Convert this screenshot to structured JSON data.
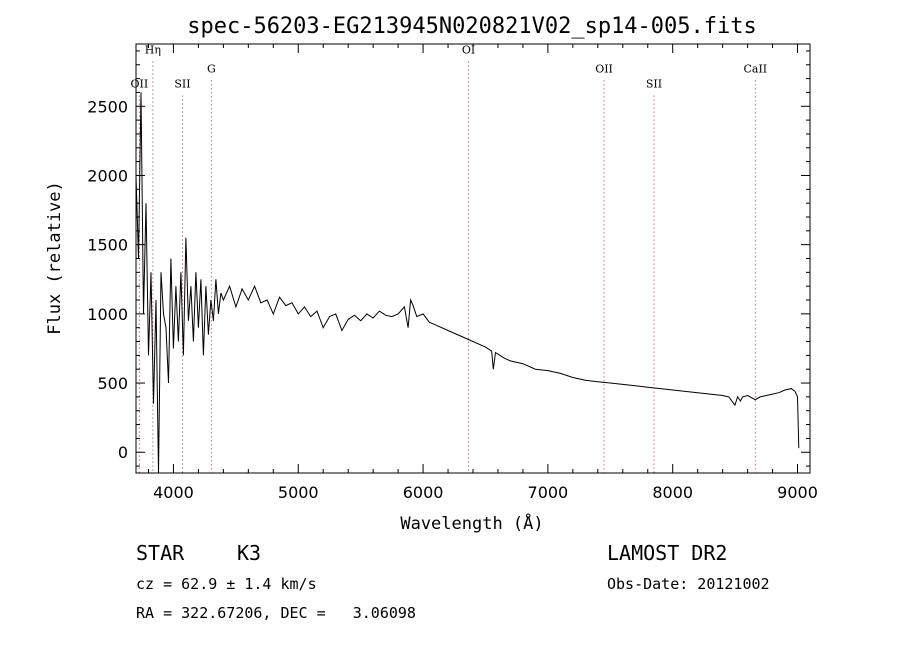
{
  "chart_data": {
    "type": "line",
    "title": "spec-56203-EG213945N020821V02_sp14-005.fits",
    "xlabel": "Wavelength (Å)",
    "ylabel": "Flux (relative)",
    "xlim": [
      3700,
      9100
    ],
    "ylim": [
      -150,
      2950
    ],
    "xticks": [
      4000,
      5000,
      6000,
      7000,
      8000,
      9000
    ],
    "yticks": [
      0,
      500,
      1000,
      1500,
      2000,
      2500
    ],
    "grid": false,
    "series": [
      {
        "x": [
          3700,
          3720,
          3740,
          3760,
          3780,
          3800,
          3820,
          3840,
          3860,
          3880,
          3900,
          3920,
          3940,
          3960,
          3980,
          4000,
          4020,
          4040,
          4060,
          4080,
          4100,
          4120,
          4140,
          4160,
          4180,
          4200,
          4220,
          4240,
          4260,
          4280,
          4300,
          4320,
          4340,
          4360,
          4380,
          4400,
          4450,
          4500,
          4550,
          4600,
          4650,
          4700,
          4750,
          4800,
          4850,
          4900,
          4950,
          5000,
          5050,
          5100,
          5150,
          5200,
          5250,
          5300,
          5350,
          5400,
          5450,
          5500,
          5550,
          5600,
          5650,
          5700,
          5750,
          5800,
          5850,
          5880,
          5900,
          5920,
          5950,
          6000,
          6050,
          6100,
          6200,
          6300,
          6400,
          6500,
          6550,
          6563,
          6580,
          6650,
          6700,
          6800,
          6900,
          7000,
          7100,
          7200,
          7300,
          7400,
          7500,
          7600,
          7700,
          7800,
          7900,
          8000,
          8100,
          8200,
          8300,
          8400,
          8450,
          8498,
          8520,
          8542,
          8560,
          8600,
          8662,
          8700,
          8750,
          8800,
          8850,
          8900,
          8950,
          8980,
          9000,
          9010
        ],
        "values": [
          2000,
          1400,
          2600,
          1000,
          1800,
          700,
          1300,
          350,
          1100,
          -150,
          1300,
          1000,
          900,
          500,
          1400,
          750,
          1200,
          800,
          1300,
          700,
          1550,
          950,
          1200,
          800,
          1300,
          900,
          1250,
          700,
          1200,
          850,
          1100,
          950,
          1250,
          1000,
          1150,
          1100,
          1200,
          1050,
          1180,
          1100,
          1200,
          1080,
          1100,
          1000,
          1120,
          1060,
          1080,
          1000,
          1050,
          980,
          1020,
          900,
          980,
          1000,
          880,
          960,
          990,
          950,
          1000,
          970,
          1020,
          990,
          980,
          1000,
          1050,
          900,
          1100,
          1060,
          980,
          1000,
          940,
          920,
          880,
          840,
          800,
          760,
          730,
          600,
          720,
          680,
          660,
          640,
          600,
          590,
          570,
          540,
          520,
          510,
          500,
          490,
          480,
          470,
          460,
          450,
          440,
          430,
          420,
          410,
          400,
          340,
          400,
          370,
          400,
          410,
          380,
          400,
          410,
          420,
          430,
          450,
          460,
          440,
          400,
          30
        ]
      }
    ],
    "annotations": [
      {
        "label": "OII",
        "x": 3727,
        "label_flux": 2635
      },
      {
        "label": "Hη",
        "x": 3835,
        "label_flux": 2880
      },
      {
        "label": "SII",
        "x": 4072,
        "label_flux": 2635
      },
      {
        "label": "G",
        "x": 4304,
        "label_flux": 2745
      },
      {
        "label": "OI",
        "x": 6364,
        "label_flux": 2880
      },
      {
        "label": "OII",
        "x": 7450,
        "label_flux": 2745
      },
      {
        "label": "SII",
        "x": 7850,
        "label_flux": 2635
      },
      {
        "label": "CaII",
        "x": 8662,
        "label_flux": 2745
      }
    ]
  },
  "info": {
    "object_class": "STAR",
    "subclass": "K3",
    "survey": "LAMOST DR2",
    "redshift": "cz = 62.9 ± 1.4 km/s",
    "obs_date": "Obs-Date: 20121002",
    "coords": "RA = 322.67206, DEC =   3.06098"
  }
}
